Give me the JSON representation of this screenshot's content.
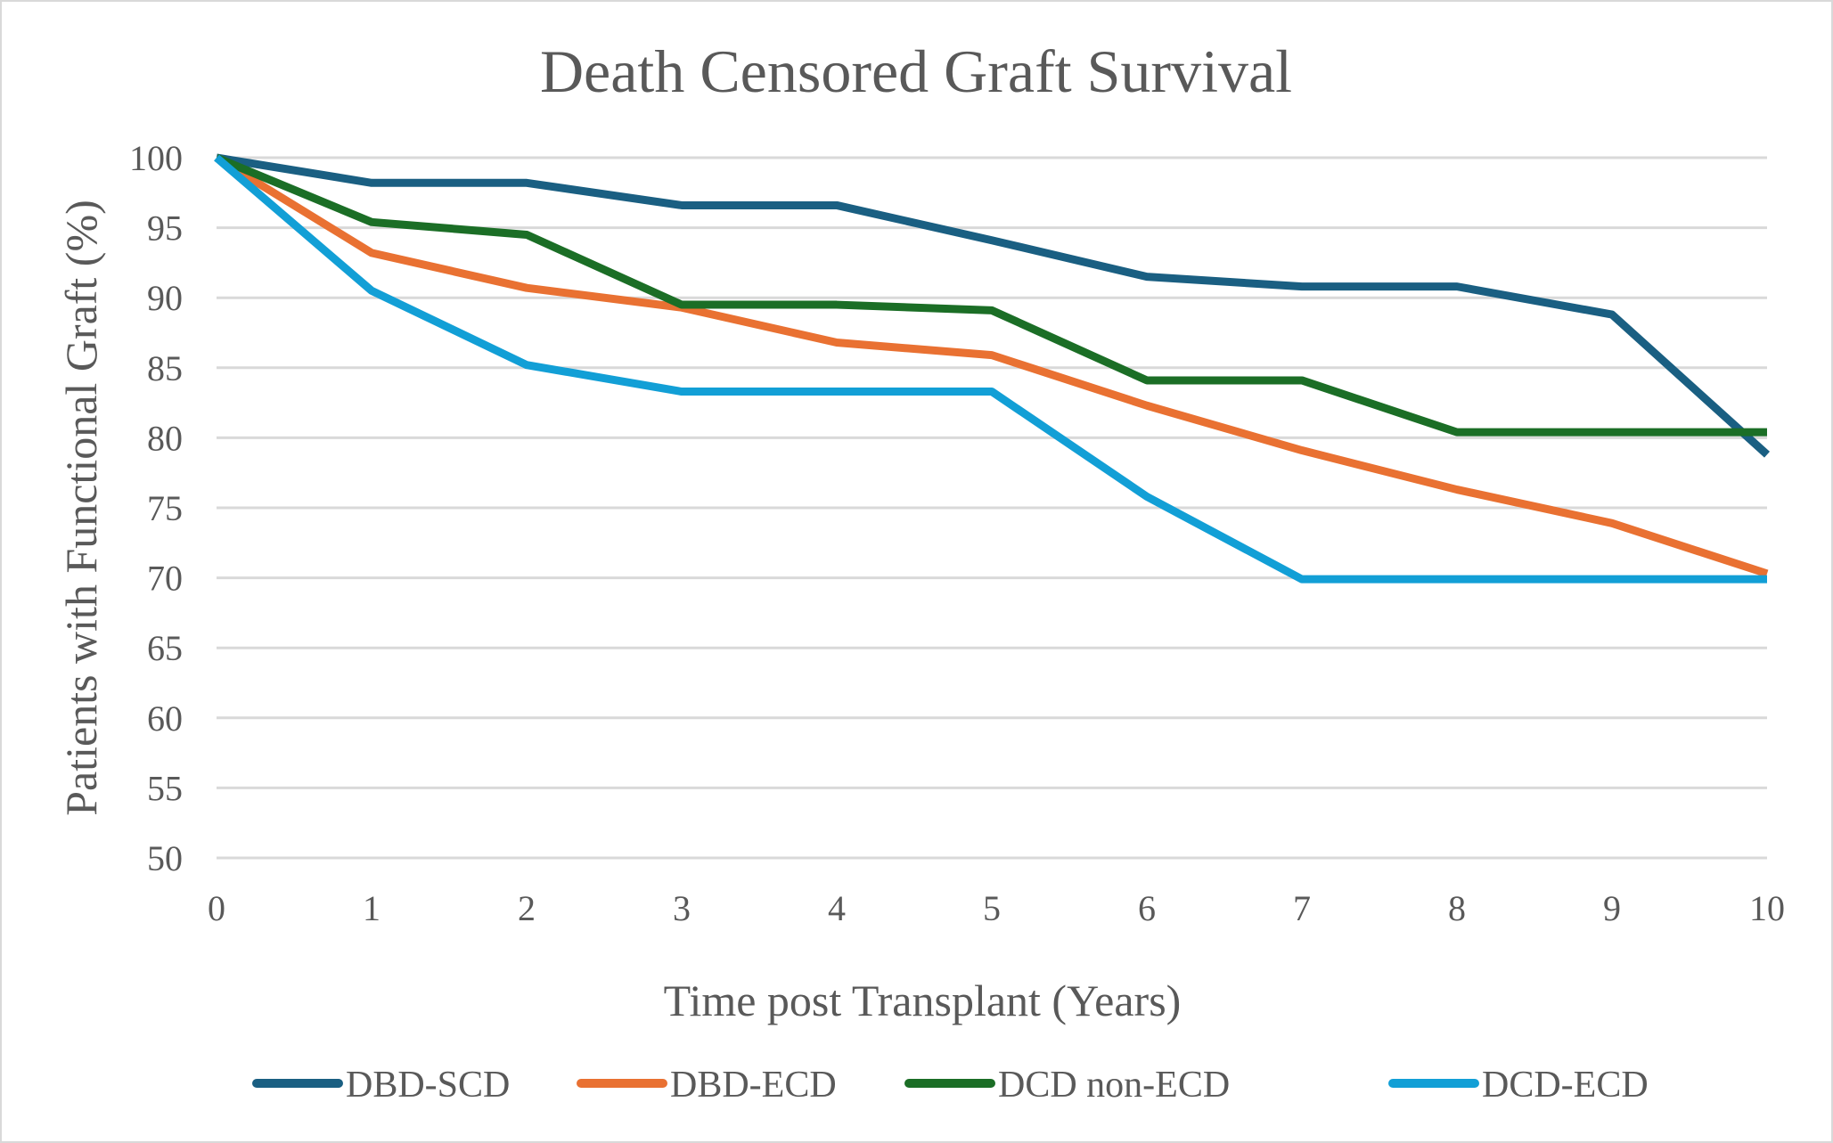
{
  "chart_data": {
    "type": "line",
    "title": "Death Censored Graft Survival",
    "xlabel": "Time post Transplant (Years)",
    "ylabel": "Patients with Functional Graft (%)",
    "x": [
      0,
      1,
      2,
      3,
      4,
      5,
      6,
      7,
      8,
      9,
      10
    ],
    "xlim": [
      0,
      10
    ],
    "ylim": [
      50,
      100
    ],
    "xticks": [
      "0",
      "1",
      "2",
      "3",
      "4",
      "5",
      "6",
      "7",
      "8",
      "9",
      "10"
    ],
    "yticks": [
      "50",
      "55",
      "60",
      "65",
      "70",
      "75",
      "80",
      "85",
      "90",
      "95",
      "100"
    ],
    "grid": "horizontal",
    "legend_position": "bottom",
    "series": [
      {
        "name": "DBD-SCD",
        "color": "#1a5f82",
        "values": [
          100,
          98.2,
          98.2,
          96.6,
          96.6,
          94.1,
          91.5,
          90.8,
          90.8,
          88.8,
          78.8
        ]
      },
      {
        "name": "DBD-ECD",
        "color": "#e97132",
        "values": [
          100,
          93.2,
          90.7,
          89.3,
          86.8,
          85.9,
          82.3,
          79.1,
          76.3,
          73.9,
          70.3
        ]
      },
      {
        "name": "DCD non-ECD",
        "color": "#1b6e26",
        "values": [
          100,
          95.4,
          94.5,
          89.5,
          89.5,
          89.1,
          84.1,
          84.1,
          80.4,
          80.4,
          80.4
        ]
      },
      {
        "name": "DCD-ECD",
        "color": "#129fd6",
        "values": [
          100,
          90.5,
          85.2,
          83.3,
          83.3,
          83.3,
          75.8,
          69.9,
          69.9,
          69.9,
          69.9
        ]
      }
    ]
  }
}
